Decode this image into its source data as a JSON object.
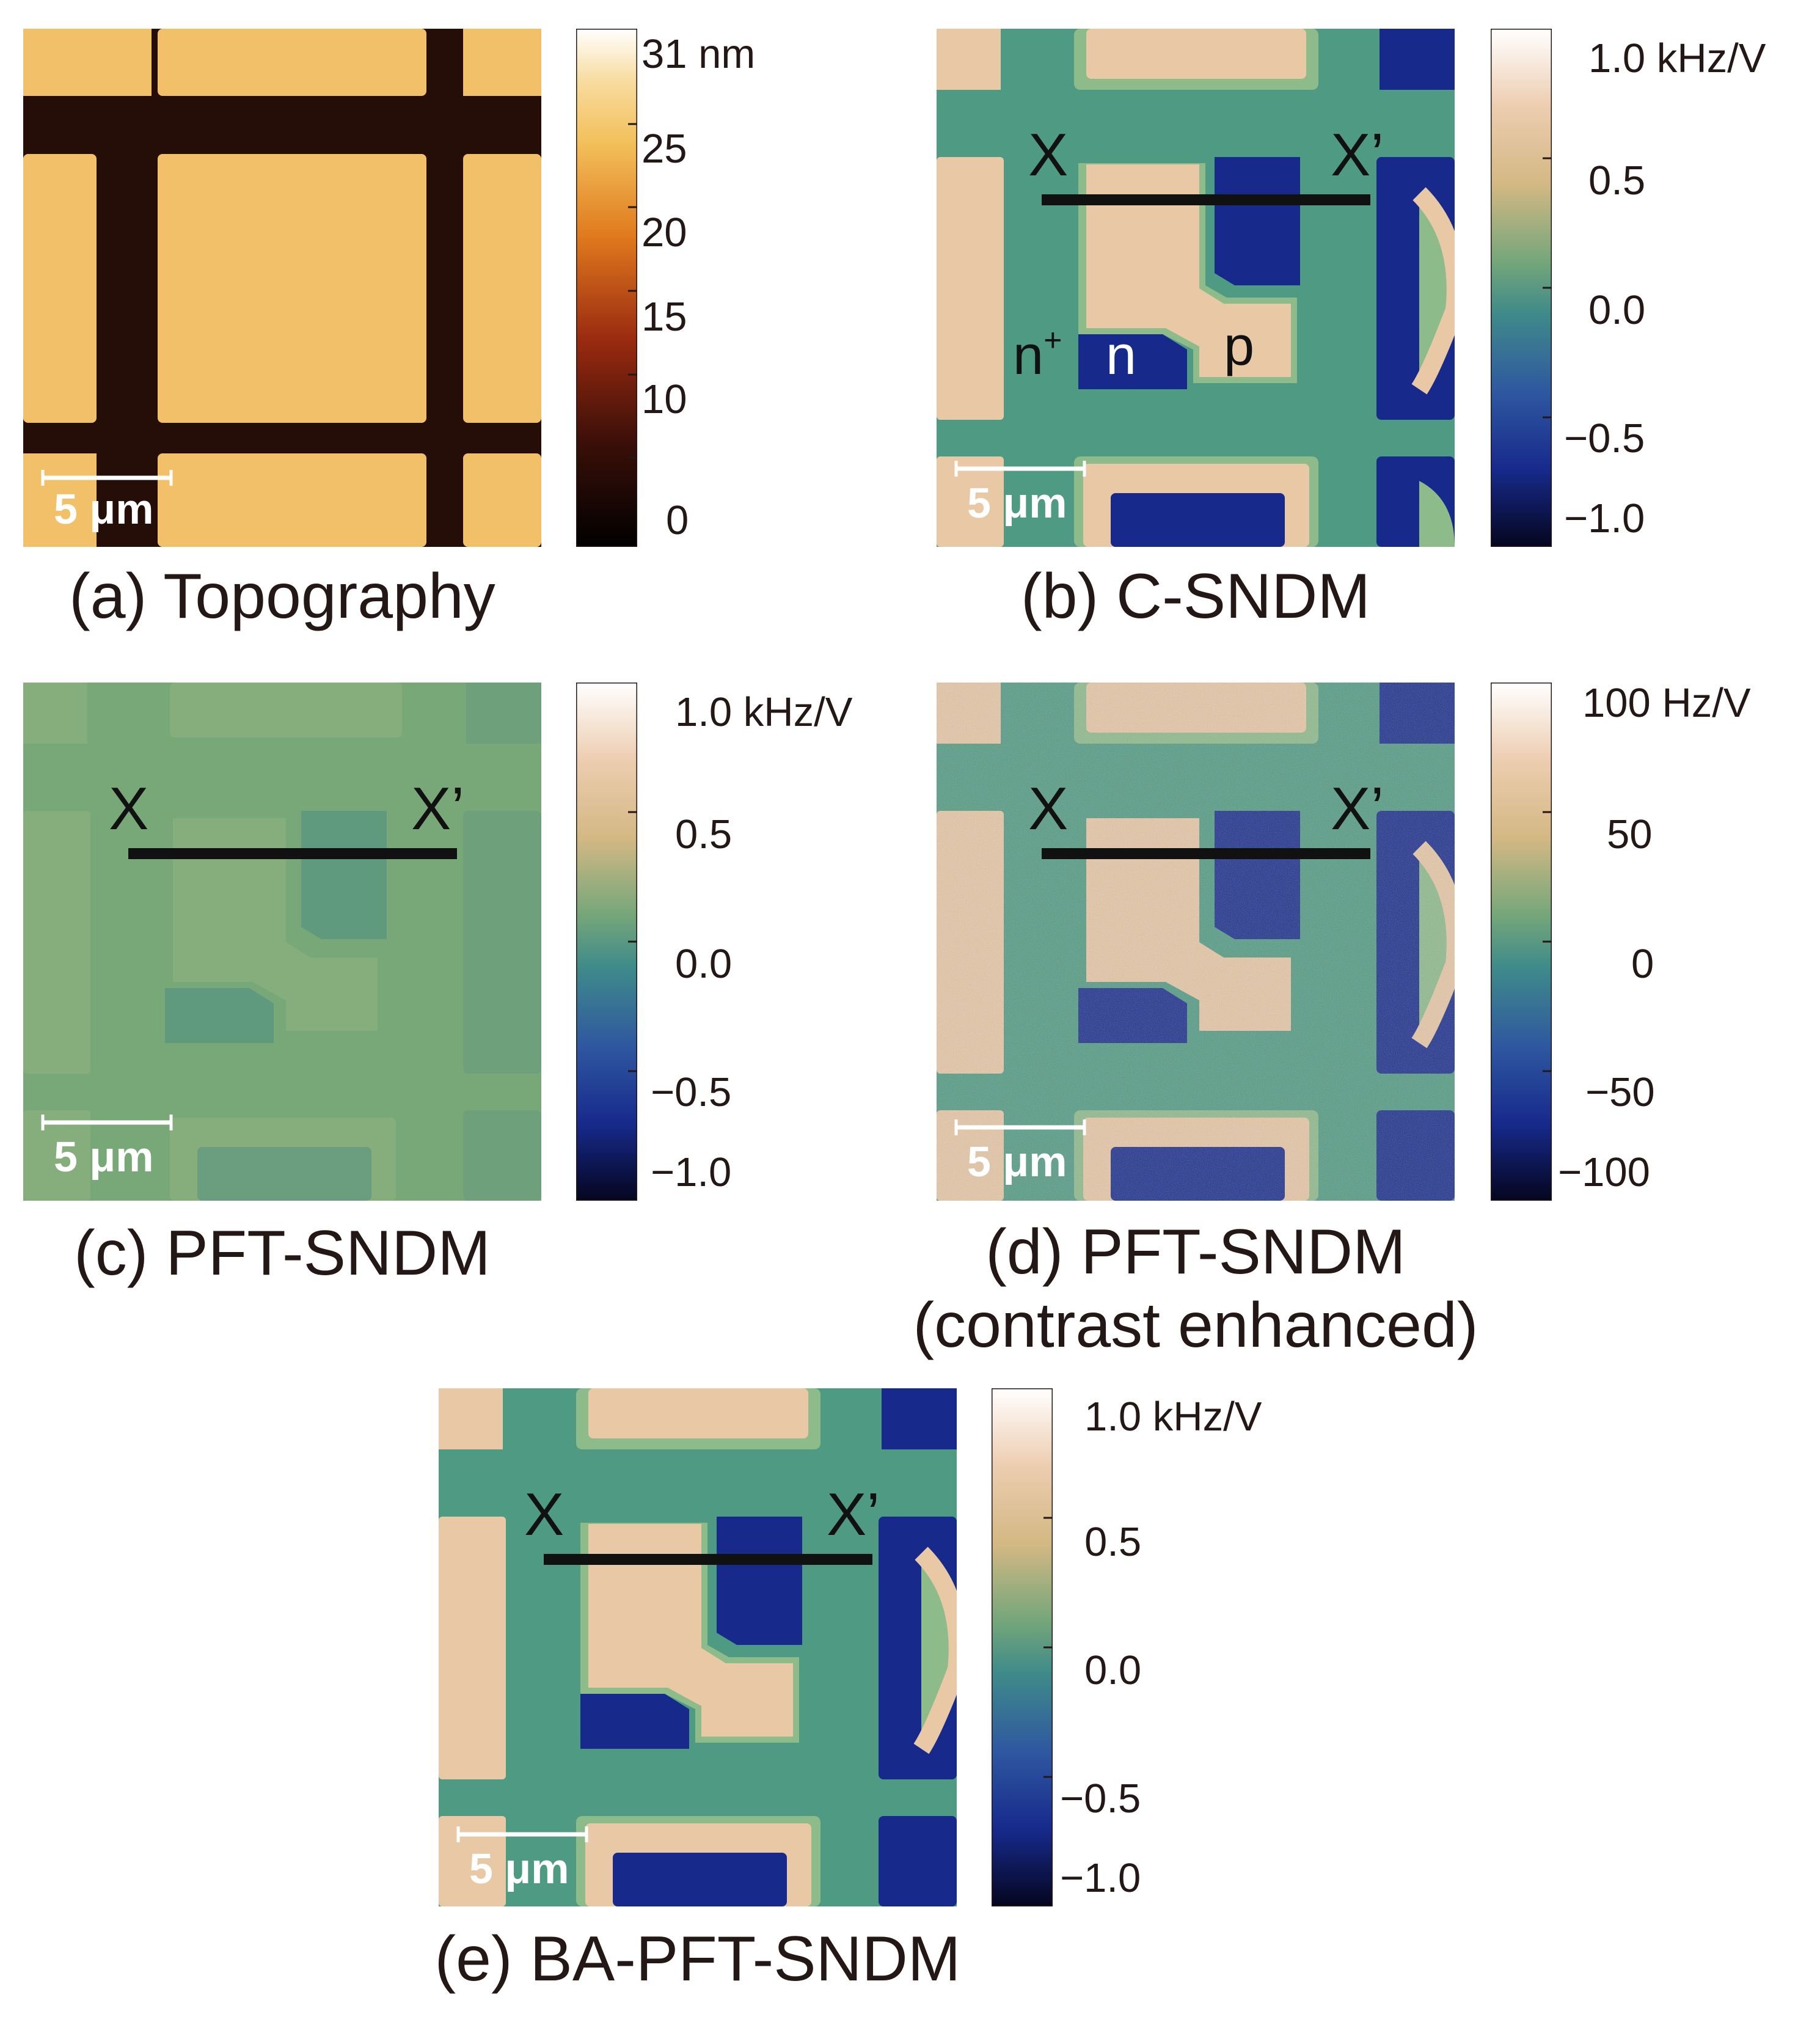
{
  "panels": {
    "a": {
      "caption": "(a) Topography",
      "scale_bar": "5 μm",
      "colorbar": {
        "ticks": [
          "31 nm",
          "25",
          "20",
          "15",
          "10",
          "0"
        ]
      }
    },
    "b": {
      "caption": "(b) C-SNDM",
      "scale_bar": "5 μm",
      "line_start": "X",
      "line_end": "X’",
      "regions": {
        "n_plus": "n",
        "n_plus_sup": "+",
        "n": "n",
        "p": "p"
      },
      "colorbar": {
        "ticks": [
          "1.0 kHz/V",
          "0.5",
          "0.0",
          "−0.5",
          "−1.0"
        ]
      }
    },
    "c": {
      "caption": "(c) PFT-SNDM",
      "scale_bar": "5 μm",
      "line_start": "X",
      "line_end": "X’",
      "colorbar": {
        "ticks": [
          "1.0 kHz/V",
          "0.5",
          "0.0",
          "−0.5",
          "−1.0"
        ]
      }
    },
    "d": {
      "caption_line1": "(d) PFT-SNDM",
      "caption_line2": "(contrast enhanced)",
      "scale_bar": "5 μm",
      "line_start": "X",
      "line_end": "X’",
      "colorbar": {
        "ticks": [
          "100 Hz/V",
          "50",
          "0",
          "−50",
          "−100"
        ]
      }
    },
    "e": {
      "caption": "(e) BA-PFT-SNDM",
      "scale_bar": "5 μm",
      "line_start": "X",
      "line_end": "X’",
      "colorbar": {
        "ticks": [
          "1.0 kHz/V",
          "0.5",
          "0.0",
          "−0.5",
          "−1.0"
        ]
      }
    }
  },
  "colors": {
    "topo_high": "#f2c068",
    "topo_low": "#250d08",
    "sndm_p": "#e9c8a5",
    "sndm_n": "#172a8c",
    "sndm_nplus": "#4f9a82",
    "pft_bg": "#78a878"
  }
}
